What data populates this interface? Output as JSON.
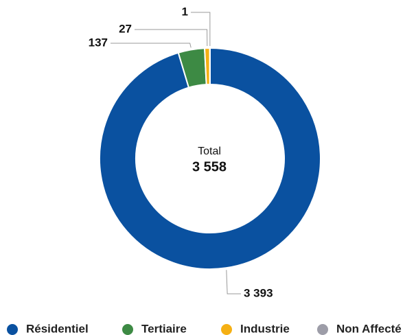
{
  "chart_data": {
    "type": "donut",
    "categories": [
      "Résidentiel",
      "Tertiaire",
      "Industrie",
      "Non Affecté"
    ],
    "values": [
      3393,
      137,
      27,
      1
    ],
    "value_labels": [
      "3 393",
      "137",
      "27",
      "1"
    ],
    "colors": [
      "#0a51a0",
      "#3d8a44",
      "#f5b014",
      "#9d9da8"
    ],
    "center": {
      "label": "Total",
      "value": 3558,
      "value_label": "3 558"
    }
  }
}
